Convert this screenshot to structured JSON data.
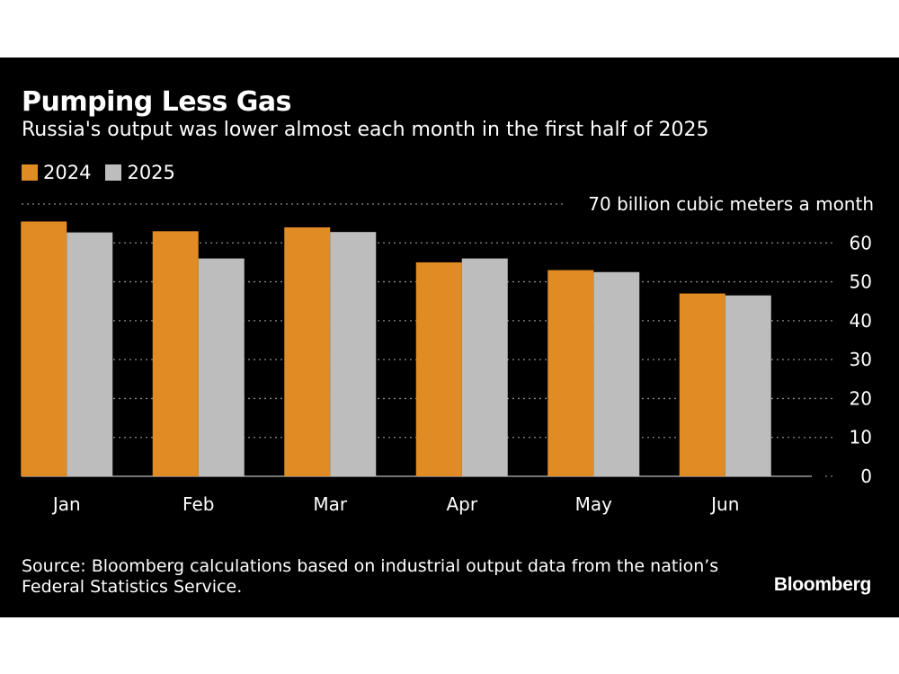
{
  "chart_data": {
    "type": "bar",
    "title": "Pumping Less Gas",
    "subtitle": "Russia's output was lower almost each month in the first half of 2025",
    "unit_label": "70 billion cubic meters a month",
    "categories": [
      "Jan",
      "Feb",
      "Mar",
      "Apr",
      "May",
      "Jun"
    ],
    "series": [
      {
        "name": "2024",
        "color": "#e08b24",
        "values": [
          65.5,
          63,
          64,
          55,
          53,
          47
        ]
      },
      {
        "name": "2025",
        "color": "#bdbdbd",
        "values": [
          62.7,
          56,
          62.8,
          56,
          52.5,
          46.5
        ]
      }
    ],
    "y_ticks": [
      0,
      10,
      20,
      30,
      40,
      50,
      60,
      70
    ],
    "y_tick_labels": [
      "0",
      "10",
      "20",
      "30",
      "40",
      "50",
      "60",
      ""
    ],
    "ylim": [
      0,
      70
    ],
    "grid": true,
    "legend_position": "top-left",
    "y_axis_side": "right"
  },
  "source": "Source: Bloomberg calculations based on industrial output data from the nation’s Federal Statistics Service.",
  "brand": "Bloomberg"
}
